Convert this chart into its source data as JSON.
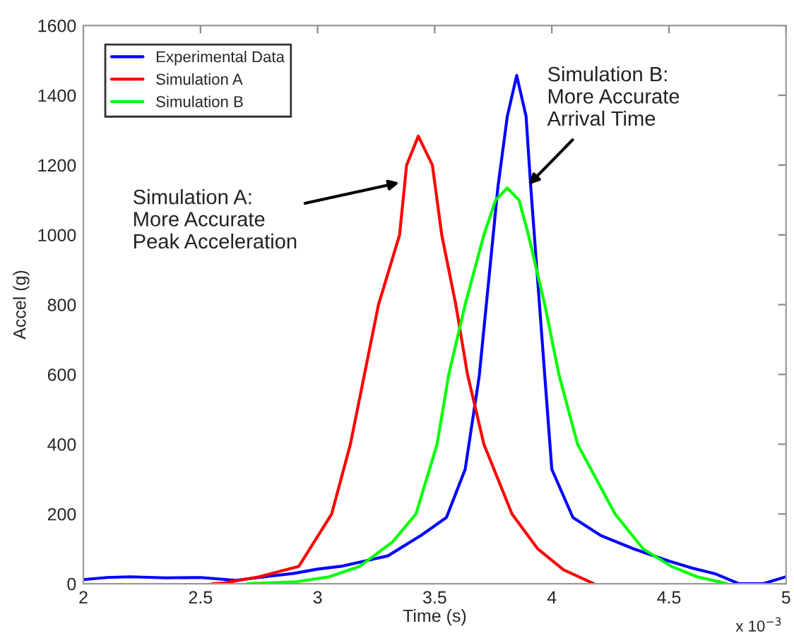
{
  "chart_data": {
    "type": "line",
    "xlabel": "Time (s)",
    "ylabel": "Accel (g)",
    "xlim": [
      2,
      5
    ],
    "ylim": [
      0,
      1600
    ],
    "xticks": [
      2,
      2.5,
      3,
      3.5,
      4,
      4.5,
      5
    ],
    "yticks": [
      0,
      200,
      400,
      600,
      800,
      1000,
      1200,
      1400,
      1600
    ],
    "grid": false,
    "legend": "top left",
    "line_style": "solid",
    "marker": "none",
    "series": [
      {
        "name": "Experimental Data",
        "color": "#0000ff",
        "x": [
          2.0,
          2.1,
          2.2,
          2.35,
          2.5,
          2.65,
          2.8,
          2.9,
          3.0,
          3.1,
          3.2,
          3.3,
          3.44,
          3.55,
          3.63,
          3.69,
          3.73,
          3.77,
          3.81,
          3.85,
          3.89,
          3.91,
          3.94,
          3.97,
          4.0,
          4.09,
          4.21,
          4.35,
          4.5,
          4.6,
          4.7,
          4.8,
          4.9,
          5.0
        ],
        "values": [
          12,
          18,
          20,
          17,
          18,
          10,
          22,
          30,
          42,
          50,
          65,
          80,
          138,
          190,
          328,
          595,
          866,
          1138,
          1340,
          1457,
          1340,
          1138,
          866,
          595,
          328,
          190,
          138,
          100,
          65,
          45,
          28,
          0,
          0,
          20
        ]
      },
      {
        "name": "Simulation A",
        "color": "#ff0000",
        "x": [
          2.55,
          2.6,
          2.75,
          2.92,
          3.06,
          3.14,
          3.26,
          3.35,
          3.38,
          3.43,
          3.49,
          3.53,
          3.59,
          3.64,
          3.71,
          3.83,
          3.94,
          4.05,
          4.18
        ],
        "values": [
          0,
          2,
          20,
          50,
          200,
          400,
          800,
          1000,
          1200,
          1283,
          1200,
          1000,
          800,
          600,
          400,
          200,
          100,
          40,
          0
        ]
      },
      {
        "name": "Simulation B",
        "color": "#00ff00",
        "x": [
          2.7,
          2.9,
          3.05,
          3.18,
          3.32,
          3.42,
          3.51,
          3.56,
          3.63,
          3.71,
          3.76,
          3.81,
          3.86,
          3.9,
          3.97,
          4.03,
          4.11,
          4.27,
          4.39,
          4.51,
          4.62,
          4.75
        ],
        "values": [
          0,
          5,
          20,
          50,
          120,
          200,
          400,
          600,
          800,
          1000,
          1100,
          1134,
          1100,
          1000,
          800,
          600,
          400,
          200,
          100,
          50,
          20,
          0
        ]
      }
    ],
    "annotations": [
      "Simulation A:\nMore Accurate\nPeak Acceleration",
      "Simulation B:\nMore Accurate\nArrival Time",
      "x 10$^{−3}$"
    ]
  }
}
